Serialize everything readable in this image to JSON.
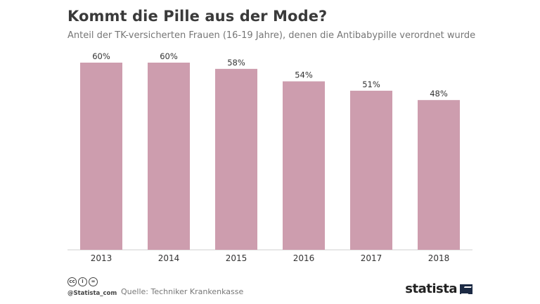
{
  "header": {
    "title": "Kommt die Pille aus der Mode?",
    "subtitle": "Anteil der TK-versicherten Frauen (16-19 Jahre), denen die Antibabypille verordnet wurde"
  },
  "chart_data": {
    "type": "bar",
    "title": "Kommt die Pille aus der Mode?",
    "subtitle": "Anteil der TK-versicherten Frauen (16-19 Jahre), denen die Antibabypille verordnet wurde",
    "categories": [
      "2013",
      "2014",
      "2015",
      "2016",
      "2017",
      "2018"
    ],
    "values": [
      60,
      60,
      58,
      54,
      51,
      48
    ],
    "value_labels": [
      "60%",
      "60%",
      "58%",
      "54%",
      "51%",
      "48%"
    ],
    "xlabel": "",
    "ylabel": "",
    "ylim": [
      0,
      60
    ],
    "grid": false,
    "bar_color": "#cd9dae"
  },
  "footer": {
    "license_icons": [
      "cc",
      "by",
      "eq"
    ],
    "handle": "@Statista_com",
    "source": "Quelle: Techniker Krankenkasse",
    "brand": "statista"
  }
}
